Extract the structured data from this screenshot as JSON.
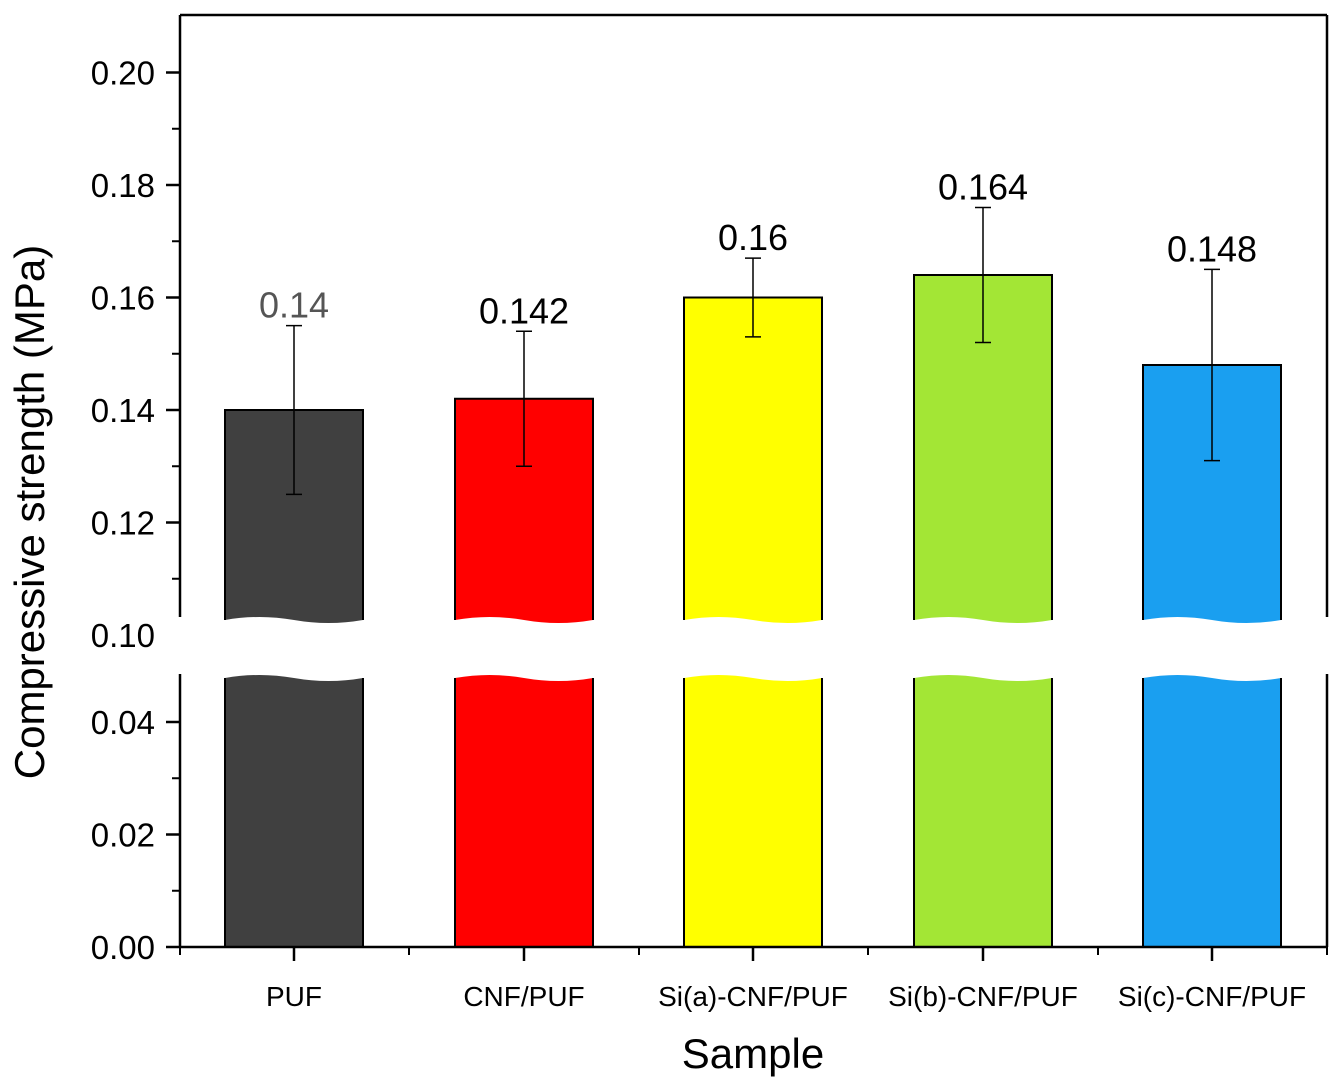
{
  "chart_data": {
    "type": "bar",
    "title": "",
    "xlabel": "Sample",
    "ylabel": "Compressive strength (MPa)",
    "categories": [
      "PUF",
      "CNF/PUF",
      "Si(a)-CNF/PUF",
      "Si(b)-CNF/PUF",
      "Si(c)-CNF/PUF"
    ],
    "values": [
      0.14,
      0.142,
      0.16,
      0.164,
      0.148
    ],
    "value_labels": [
      "0.14",
      "0.142",
      "0.16",
      "0.164",
      "0.148"
    ],
    "error_low": [
      0.125,
      0.13,
      0.153,
      0.152,
      0.131
    ],
    "error_high": [
      0.155,
      0.154,
      0.167,
      0.176,
      0.165
    ],
    "colors": [
      "#404040",
      "#ff0000",
      "#ffff00",
      "#a3e635",
      "#1a9ff0"
    ],
    "label_colors": [
      "#555555",
      "#000000",
      "#000000",
      "#000000",
      "#000000"
    ],
    "ylim": [
      0,
      0.21
    ],
    "axis_break": [
      0.049,
      0.098
    ],
    "yticks": [
      "0.00",
      "0.02",
      "0.04",
      "0.10",
      "0.12",
      "0.14",
      "0.16",
      "0.18",
      "0.20"
    ],
    "ytick_values": [
      0,
      0.02,
      0.04,
      0.1,
      0.12,
      0.14,
      0.16,
      0.18,
      0.2
    ],
    "grid": false,
    "legend": "none"
  }
}
